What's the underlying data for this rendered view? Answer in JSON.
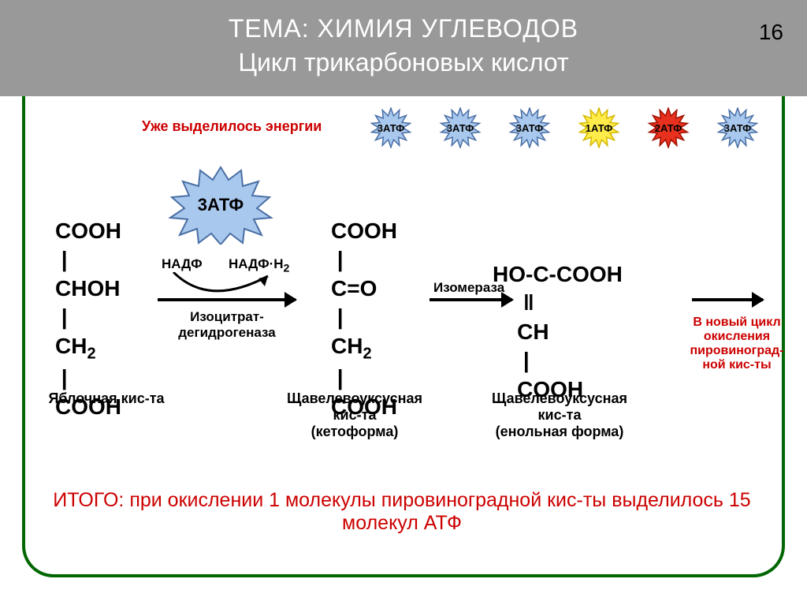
{
  "header": {
    "title": "ТЕМА: ХИМИЯ УГЛЕВОДОВ",
    "subtitle": "Цикл трикарбоновых кислот",
    "page_number": "16",
    "bg_color": "#999999",
    "text_color": "#ffffff"
  },
  "card": {
    "border_color": "#006600",
    "border_width": 4,
    "corner_radius": 40
  },
  "energy_row": {
    "label": "Уже выделилось энергии",
    "label_color": "#cc0000",
    "badges": [
      {
        "text": "3АТФ",
        "fill": "#a9c8ed",
        "stroke": "#4a6fa5"
      },
      {
        "text": "3АТФ",
        "fill": "#a9c8ed",
        "stroke": "#4a6fa5"
      },
      {
        "text": "3АТФ",
        "fill": "#a9c8ed",
        "stroke": "#4a6fa5"
      },
      {
        "text": "1АТФ",
        "fill": "#ffec4a",
        "stroke": "#d4b800"
      },
      {
        "text": "2АТФ",
        "fill": "#e8301f",
        "stroke": "#a01000"
      },
      {
        "text": "3АТФ",
        "fill": "#a9c8ed",
        "stroke": "#4a6fa5"
      }
    ]
  },
  "big_badge": {
    "text": "3АТФ",
    "fill": "#a9c8ed",
    "stroke": "#4a6fa5"
  },
  "reaction": {
    "reagent_left": "НАДФ",
    "reagent_right": "НАДФ·Н₂",
    "enzyme1": "Изоцитрат-дегидрогеназа",
    "enzyme2": "Изомераза",
    "cycle_note": "В новый цикл окисления пировиноград-ной кис-ты",
    "cycle_note_color": "#cc0000"
  },
  "molecules": {
    "m1_lines": [
      "COOH",
      "CHOH",
      "CH₂",
      "COOH"
    ],
    "m2_lines": [
      "COOH",
      "C=O",
      "CH₂",
      "COOH"
    ],
    "m3_line1": "HO-C-COOH",
    "m3_line2": "CH",
    "m3_line3": "COOH"
  },
  "names": {
    "n1": "Яблочная кис-та",
    "n2": "Щавелевоуксусная кис-та (кетоформа)",
    "n3": "Щавелевоуксусная кис-та (енольная форма)"
  },
  "summary": {
    "text": "ИТОГО: при окислении 1 молекулы  пировиноградной кис-ты выделилось 15 молекул АТФ",
    "color": "#cc0000"
  }
}
